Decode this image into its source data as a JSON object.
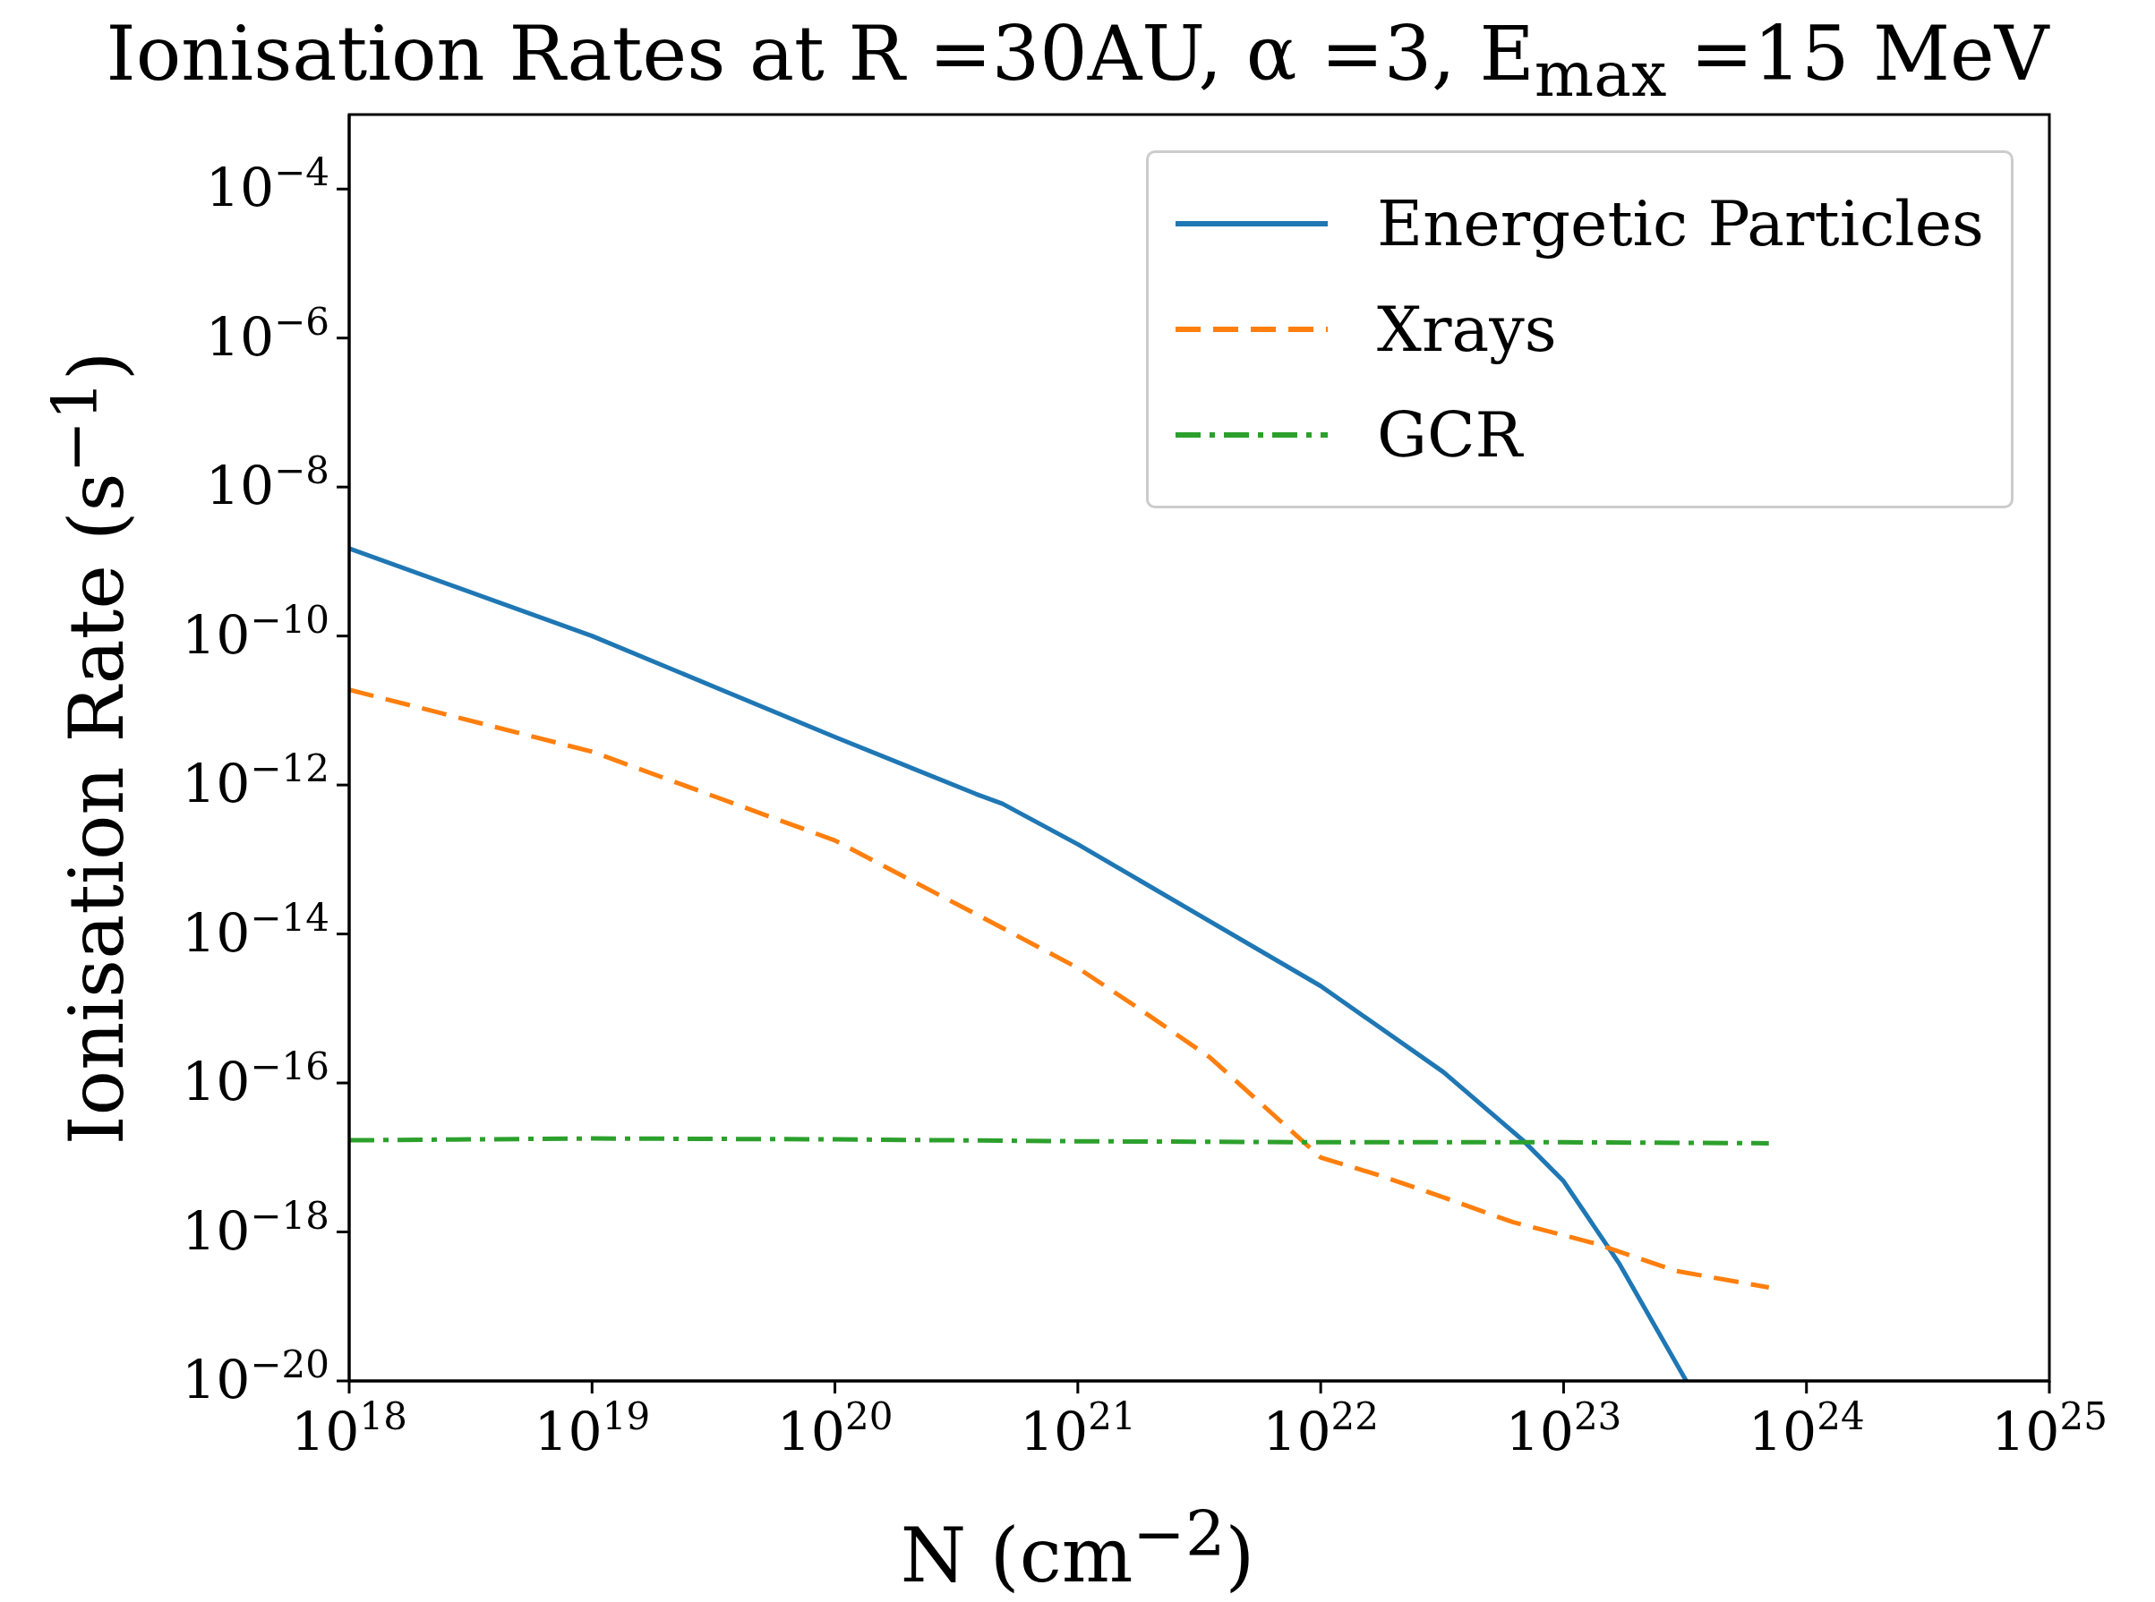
{
  "chart_data": {
    "type": "line",
    "title": "Ionisation Rates at R =30AU, α =3, E$_{max}$ =15 MeV",
    "xlabel": "N  (cm$^{−2}$)",
    "ylabel": "Ionisation Rate  (s$^{−1}$)",
    "log": "xy",
    "legend": "top right",
    "xlim": [
      1e+18,
      1e+25
    ],
    "xticks": [
      {
        "value": 1e+18,
        "label": "10$^{18}$"
      },
      {
        "value": 1e+19,
        "label": "10$^{19}$"
      },
      {
        "value": 1e+20,
        "label": "10$^{20}$"
      },
      {
        "value": 1e+21,
        "label": "10$^{21}$"
      },
      {
        "value": 1e+22,
        "label": "10$^{22}$"
      },
      {
        "value": 1e+23,
        "label": "10$^{23}$"
      },
      {
        "value": 1e+24,
        "label": "10$^{24}$"
      },
      {
        "value": 1e+25,
        "label": "10$^{25}$"
      }
    ],
    "ylim": [
      1e-20,
      0.001
    ],
    "yticks": [
      {
        "value": 1e-20,
        "label": "10$^{−20}$"
      },
      {
        "value": 1e-18,
        "label": "10$^{−18}$"
      },
      {
        "value": 1e-16,
        "label": "10$^{−16}$"
      },
      {
        "value": 1e-14,
        "label": "10$^{−14}$"
      },
      {
        "value": 1e-12,
        "label": "10$^{−12}$"
      },
      {
        "value": 1e-10,
        "label": "10$^{−10}$"
      },
      {
        "value": 1e-08,
        "label": "10$^{−8}$"
      },
      {
        "value": 1e-06,
        "label": "10$^{−6}$"
      },
      {
        "value": 0.0001,
        "label": "10$^{−4}$"
      }
    ],
    "series": [
      {
        "name": "Energetic Particles",
        "color": "#1f77b4",
        "line_style": "solid",
        "x": [
          1e+18,
          1e+19,
          1e+20,
          3.8e+20,
          4.9e+20,
          1e+21,
          1e+22,
          3.2e+22,
          6.8e+22,
          1e+23,
          1.7e+23,
          3.2e+23
        ],
        "values": [
          1.5e-09,
          1e-10,
          4.4e-12,
          7.6e-13,
          5.6e-13,
          1.6e-13,
          2e-15,
          1.4e-16,
          1.7e-17,
          4.8e-18,
          3.7e-19,
          1e-20
        ]
      },
      {
        "name": "Xrays",
        "color": "#ff7f0e",
        "line_style": "dashed",
        "x": [
          1e+18,
          1e+19,
          1e+20,
          4.9e+20,
          1e+21,
          1.8e+21,
          3.5e+21,
          1e+22,
          1.7e+22,
          2.8e+22,
          6.2e+22,
          1.35e+23,
          2.9e+23,
          7e+23
        ],
        "values": [
          1.9e-11,
          2.8e-12,
          1.8e-13,
          1.2e-14,
          3.5e-15,
          9.8e-16,
          2.2e-16,
          1e-17,
          5.9e-18,
          3.4e-18,
          1.35e-18,
          7e-19,
          3e-19,
          1.8e-19
        ]
      },
      {
        "name": "GCR",
        "color": "#2ca02c",
        "line_style": "dashdot",
        "x": [
          1e+18,
          1e+19,
          1e+20,
          1e+21,
          1e+22,
          1e+23,
          7e+23
        ],
        "values": [
          1.7e-17,
          1.8e-17,
          1.75e-17,
          1.65e-17,
          1.6e-17,
          1.6e-17,
          1.55e-17
        ]
      }
    ]
  }
}
